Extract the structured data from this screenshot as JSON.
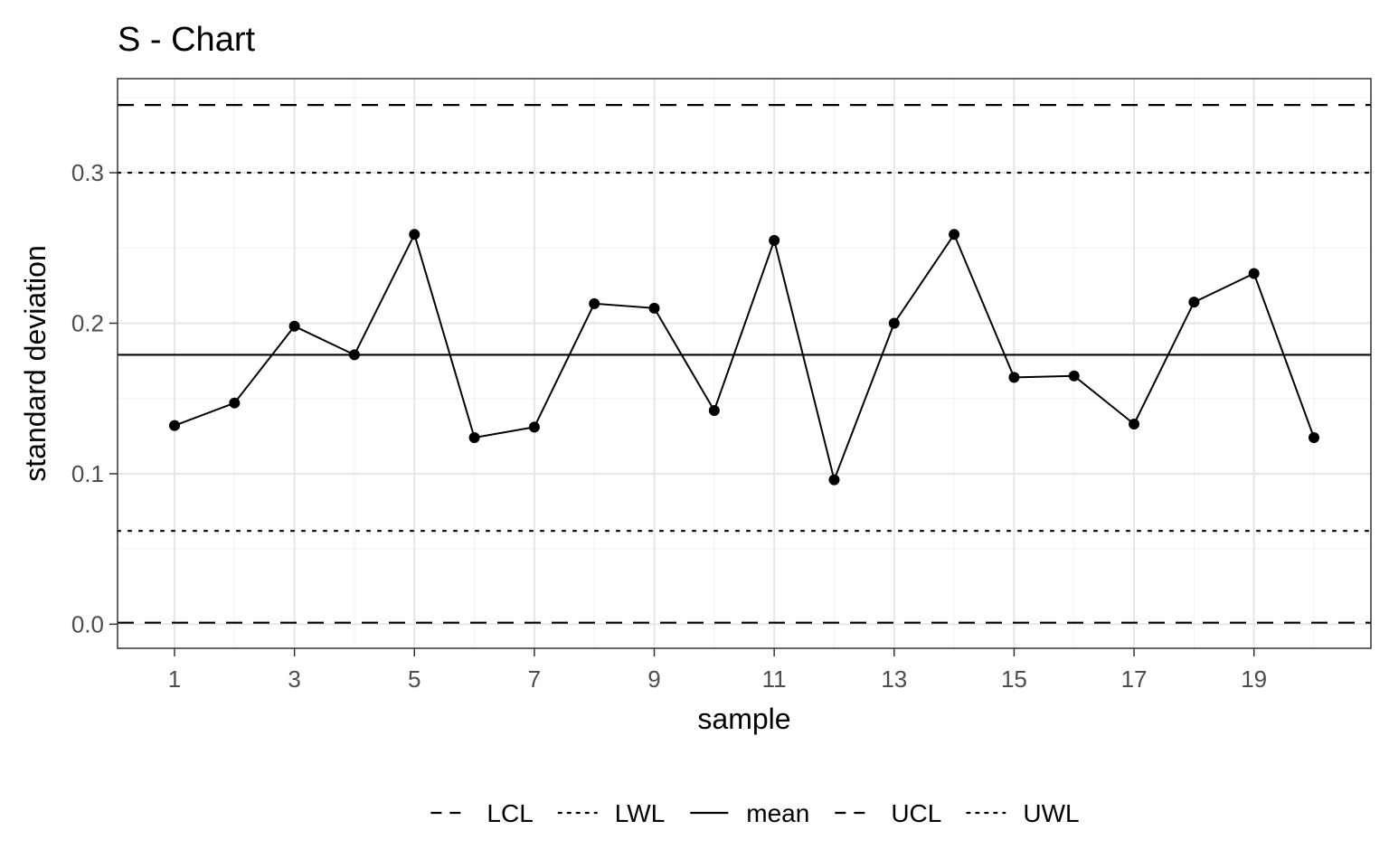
{
  "chart_data": {
    "type": "line",
    "title": "S - Chart",
    "xlabel": "sample",
    "ylabel": "standard deviation",
    "xlim": [
      0.05,
      20.95
    ],
    "ylim": [
      -0.016,
      0.3625
    ],
    "xticks": [
      1,
      3,
      5,
      7,
      9,
      11,
      13,
      15,
      17,
      19
    ],
    "xtick_labels": [
      "1",
      "3",
      "5",
      "7",
      "9",
      "11",
      "13",
      "15",
      "17",
      "19"
    ],
    "yticks": [
      0.0,
      0.1,
      0.2,
      0.3
    ],
    "ytick_labels": [
      "0.0",
      "0.1",
      "0.2",
      "0.3"
    ],
    "grid": true,
    "legend_position": "bottom",
    "series": [
      {
        "x": [
          1,
          2,
          3,
          4,
          5,
          6,
          7,
          8,
          9,
          10,
          11,
          12,
          13,
          14,
          15,
          16,
          17,
          18,
          19,
          20
        ],
        "values": [
          0.132,
          0.147,
          0.198,
          0.179,
          0.259,
          0.124,
          0.131,
          0.213,
          0.21,
          0.142,
          0.255,
          0.096,
          0.2,
          0.259,
          0.164,
          0.165,
          0.133,
          0.214,
          0.233,
          0.124
        ],
        "color": "#000000"
      }
    ],
    "reference_lines": [
      {
        "name": "LCL",
        "value": 0.001,
        "style": "dashed"
      },
      {
        "name": "LWL",
        "value": 0.062,
        "style": "dotted"
      },
      {
        "name": "mean",
        "value": 0.179,
        "style": "solid"
      },
      {
        "name": "UCL",
        "value": 0.345,
        "style": "dashed"
      },
      {
        "name": "UWL",
        "value": 0.3,
        "style": "dotted"
      }
    ],
    "legend": [
      "LCL",
      "LWL",
      "mean",
      "UCL",
      "UWL"
    ]
  }
}
